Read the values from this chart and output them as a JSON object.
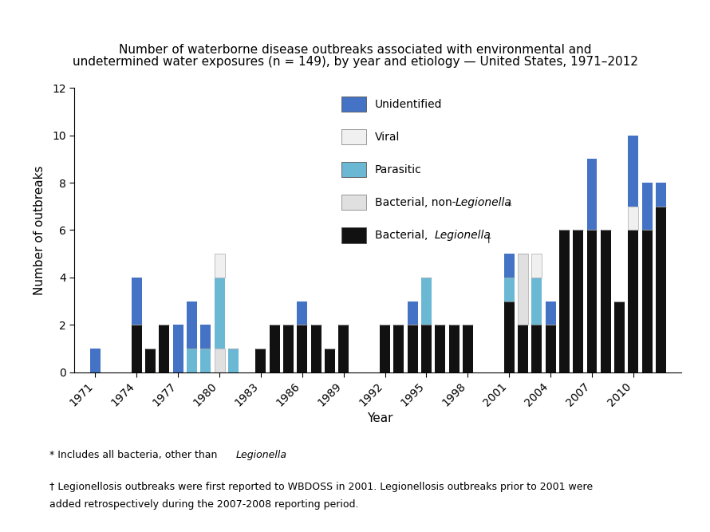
{
  "title_line1": "Number of waterborne disease outbreaks associated with environmental and",
  "title_line2": "undetermined water exposures (n = 149), by year and etiology — United States, 1971–2012",
  "xlabel": "Year",
  "ylabel": "Number of outbreaks",
  "ylim": [
    0,
    12
  ],
  "yticks": [
    0,
    2,
    4,
    6,
    8,
    10,
    12
  ],
  "years": [
    1971,
    1972,
    1973,
    1974,
    1975,
    1976,
    1977,
    1978,
    1979,
    1980,
    1981,
    1982,
    1983,
    1984,
    1985,
    1986,
    1987,
    1988,
    1989,
    1990,
    1991,
    1992,
    1993,
    1994,
    1995,
    1996,
    1997,
    1998,
    1999,
    2000,
    2001,
    2002,
    2003,
    2004,
    2005,
    2006,
    2007,
    2008,
    2009,
    2010,
    2011,
    2012
  ],
  "legionella": [
    0,
    0,
    0,
    2,
    1,
    2,
    0,
    0,
    0,
    0,
    0,
    0,
    1,
    2,
    2,
    2,
    2,
    1,
    2,
    0,
    0,
    2,
    2,
    2,
    2,
    2,
    2,
    2,
    0,
    0,
    3,
    2,
    2,
    2,
    6,
    6,
    6,
    6,
    3,
    6,
    6,
    7
  ],
  "bact_nonleg": [
    0,
    0,
    0,
    0,
    0,
    0,
    0,
    0,
    0,
    1,
    0,
    0,
    0,
    0,
    0,
    0,
    0,
    0,
    0,
    0,
    0,
    0,
    0,
    0,
    0,
    0,
    0,
    0,
    0,
    0,
    0,
    3,
    0,
    0,
    0,
    0,
    0,
    0,
    0,
    0,
    0,
    0
  ],
  "parasitic": [
    0,
    0,
    0,
    0,
    0,
    0,
    0,
    1,
    1,
    3,
    1,
    0,
    0,
    0,
    0,
    0,
    0,
    0,
    0,
    0,
    0,
    0,
    0,
    0,
    2,
    0,
    0,
    0,
    0,
    0,
    1,
    0,
    2,
    0,
    0,
    0,
    0,
    0,
    0,
    0,
    0,
    0
  ],
  "viral": [
    0,
    0,
    0,
    0,
    0,
    0,
    0,
    0,
    0,
    1,
    0,
    0,
    0,
    0,
    0,
    0,
    0,
    0,
    0,
    0,
    0,
    0,
    0,
    0,
    0,
    0,
    0,
    0,
    0,
    0,
    0,
    0,
    1,
    0,
    0,
    0,
    0,
    0,
    0,
    1,
    0,
    0
  ],
  "unidentified": [
    1,
    0,
    0,
    2,
    0,
    0,
    2,
    2,
    1,
    0,
    0,
    0,
    0,
    0,
    0,
    1,
    0,
    0,
    0,
    0,
    0,
    0,
    0,
    1,
    0,
    0,
    0,
    0,
    0,
    0,
    1,
    0,
    0,
    1,
    0,
    0,
    3,
    0,
    0,
    3,
    2,
    1
  ],
  "color_legionella": "#111111",
  "color_bact_nonleg": "#e0e0e0",
  "color_parasitic": "#6bb8d4",
  "color_viral": "#f0f0f0",
  "color_unidentified": "#4472c4",
  "bar_width": 0.75,
  "background_color": "#ffffff"
}
